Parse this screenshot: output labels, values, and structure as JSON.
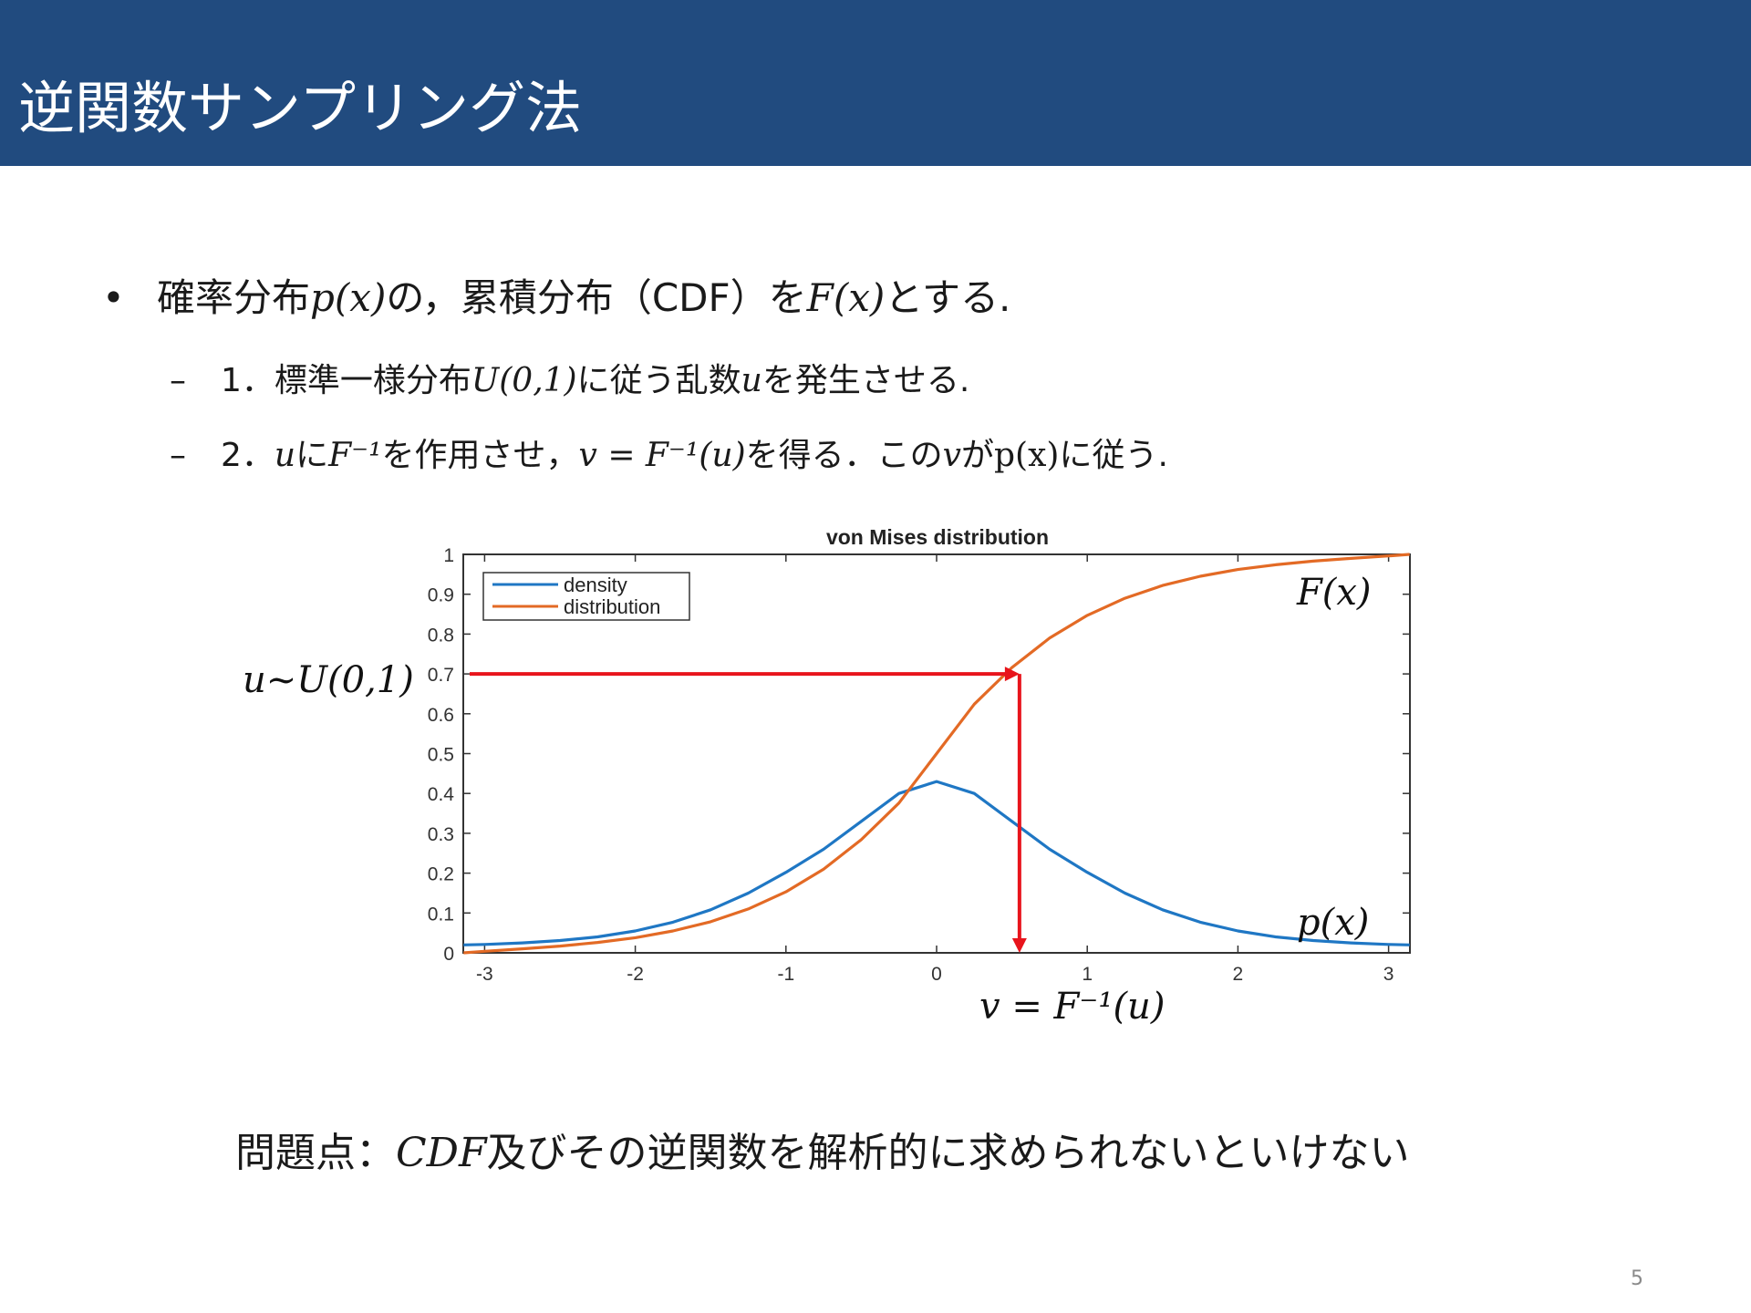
{
  "slide": {
    "title": "逆関数サンプリング法",
    "page_number": "5"
  },
  "bullets": {
    "main": {
      "t1": "確率分布",
      "m1": "p(x)",
      "t2": "の，累積分布（CDF）を",
      "m2": "F(x)",
      "t3": "とする."
    },
    "sub1": {
      "num": "1．",
      "t1": "標準一様分布",
      "m1": "U(0,1)",
      "t2": "に従う乱数",
      "m2": "u",
      "t3": "を発生させる."
    },
    "sub2": {
      "num": "2．",
      "m1": "u",
      "t1": "に",
      "m2": "F⁻¹",
      "t2": "を作用させ，",
      "m3": "v = F⁻¹(u)",
      "t3": "を得る．この",
      "m4": "v",
      "t4": "が",
      "m5": "p(x)",
      "t5": "に従う."
    }
  },
  "note": {
    "t1": "問題点：",
    "m1": "CDF",
    "t2": "及びその逆関数を解析的に求められないといけない"
  },
  "annotations": {
    "u_label": "u~U(0,1)",
    "F_label": "F(x)",
    "p_label": "p(x)",
    "v_label": "v = F⁻¹(u)",
    "u_value": 0.7,
    "v_value": 0.55
  },
  "colors": {
    "title_bar": "#214b7f",
    "density": "#1f77c4",
    "distribution": "#e36a25",
    "arrow": "#e8141c"
  },
  "chart_data": {
    "type": "line",
    "title": "von Mises distribution",
    "xlim": [
      -3.14159,
      3.14159
    ],
    "ylim": [
      0,
      1
    ],
    "xticks": [
      "-3",
      "-2",
      "-1",
      "0",
      "1",
      "2",
      "3"
    ],
    "yticks": [
      "0",
      "0.1",
      "0.2",
      "0.3",
      "0.4",
      "0.5",
      "0.6",
      "0.7",
      "0.8",
      "0.9",
      "1"
    ],
    "legend_position": "top-left",
    "series": [
      {
        "name": "density",
        "x": [
          -3.14,
          -3.0,
          -2.75,
          -2.5,
          -2.25,
          -2.0,
          -1.75,
          -1.5,
          -1.25,
          -1.0,
          -0.75,
          -0.5,
          -0.25,
          0.0,
          0.25,
          0.5,
          0.75,
          1.0,
          1.25,
          1.5,
          1.75,
          2.0,
          2.25,
          2.5,
          2.75,
          3.0,
          3.14
        ],
        "y": [
          0.02,
          0.021,
          0.025,
          0.031,
          0.04,
          0.055,
          0.077,
          0.108,
          0.15,
          0.202,
          0.26,
          0.33,
          0.4,
          0.43,
          0.4,
          0.33,
          0.26,
          0.202,
          0.15,
          0.108,
          0.077,
          0.055,
          0.04,
          0.031,
          0.025,
          0.021,
          0.02
        ]
      },
      {
        "name": "distribution",
        "x": [
          -3.14,
          -3.0,
          -2.75,
          -2.5,
          -2.25,
          -2.0,
          -1.75,
          -1.5,
          -1.25,
          -1.0,
          -0.75,
          -0.5,
          -0.25,
          0.0,
          0.25,
          0.5,
          0.75,
          1.0,
          1.25,
          1.5,
          1.75,
          2.0,
          2.25,
          2.5,
          2.75,
          3.0,
          3.14
        ],
        "y": [
          0.0,
          0.004,
          0.01,
          0.017,
          0.026,
          0.038,
          0.055,
          0.078,
          0.11,
          0.153,
          0.21,
          0.284,
          0.376,
          0.5,
          0.624,
          0.716,
          0.79,
          0.847,
          0.89,
          0.922,
          0.945,
          0.962,
          0.974,
          0.983,
          0.99,
          0.996,
          1.0
        ]
      }
    ]
  }
}
